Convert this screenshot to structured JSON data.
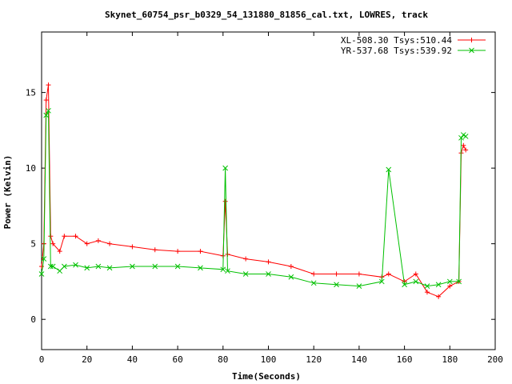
{
  "chart_data": {
    "type": "line",
    "title": "Skynet_60754_psr_b0329_54_131880_81856_cal.txt, LOWRES, track",
    "xlabel": "Time(Seconds)",
    "ylabel": "Power (Kelvin)",
    "xlim": [
      0,
      200
    ],
    "ylim": [
      -2,
      19
    ],
    "xticks": [
      0,
      20,
      40,
      60,
      80,
      100,
      120,
      140,
      160,
      180,
      200
    ],
    "yticks": [
      0,
      5,
      10,
      15
    ],
    "grid": false,
    "legend_position": "top-right",
    "series": [
      {
        "name": "XL-508.30 Tsys:510.44",
        "color": "#ff0000",
        "marker": "+",
        "x": [
          0,
          1,
          2,
          3,
          4,
          5,
          8,
          10,
          15,
          20,
          25,
          30,
          40,
          50,
          60,
          70,
          80,
          81,
          82,
          90,
          100,
          110,
          120,
          130,
          140,
          150,
          153,
          160,
          165,
          170,
          175,
          180,
          184,
          185,
          186,
          187
        ],
        "y": [
          3.5,
          5,
          14.5,
          15.5,
          5.5,
          5,
          4.5,
          5.5,
          5.5,
          5,
          5.2,
          5,
          4.8,
          4.6,
          4.5,
          4.5,
          4.2,
          7.8,
          4.3,
          4,
          3.8,
          3.5,
          3,
          3,
          3,
          2.8,
          3,
          2.5,
          3,
          1.8,
          1.5,
          2.2,
          2.5,
          11,
          11.5,
          11.2
        ]
      },
      {
        "name": "YR-537.68 Tsys:539.92",
        "color": "#00c000",
        "marker": "x",
        "x": [
          0,
          1,
          2,
          3,
          4,
          5,
          8,
          10,
          15,
          20,
          25,
          30,
          40,
          50,
          60,
          70,
          80,
          81,
          82,
          90,
          100,
          110,
          120,
          130,
          140,
          150,
          153,
          160,
          165,
          170,
          175,
          180,
          184,
          185,
          186,
          187
        ],
        "y": [
          3,
          4,
          13.5,
          13.8,
          3.5,
          3.5,
          3.2,
          3.5,
          3.6,
          3.4,
          3.5,
          3.4,
          3.5,
          3.5,
          3.5,
          3.4,
          3.3,
          10,
          3.2,
          3,
          3,
          2.8,
          2.4,
          2.3,
          2.2,
          2.5,
          9.9,
          2.3,
          2.5,
          2.2,
          2.3,
          2.5,
          2.5,
          12,
          12.2,
          12.1
        ]
      }
    ]
  }
}
